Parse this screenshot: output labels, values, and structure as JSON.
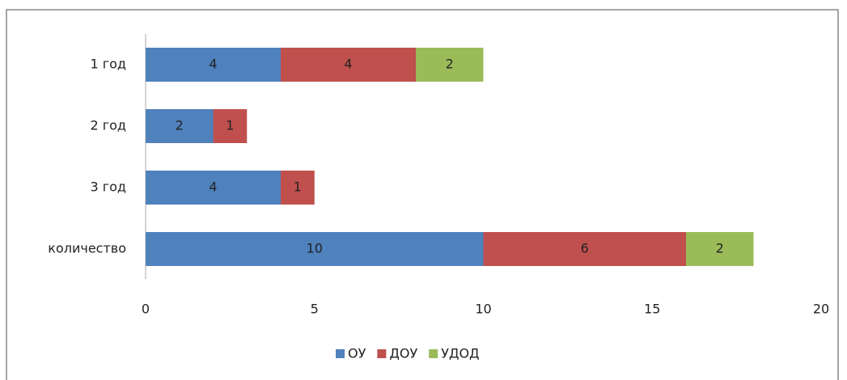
{
  "chart_data": {
    "type": "bar",
    "orientation": "horizontal",
    "stacked": true,
    "categories": [
      "1 год",
      "2 год",
      "3 год",
      "количество"
    ],
    "series": [
      {
        "name": "ОУ",
        "color": "#4f81bd",
        "values": [
          4,
          2,
          4,
          10
        ]
      },
      {
        "name": "ДОУ",
        "color": "#c0504d",
        "values": [
          4,
          1,
          1,
          6
        ]
      },
      {
        "name": "УДОД",
        "color": "#9bbb59",
        "values": [
          2,
          null,
          null,
          2
        ]
      }
    ],
    "xlim": [
      0,
      20
    ],
    "xticks": [
      0,
      5,
      10,
      15,
      20
    ],
    "grid": false,
    "legend": "bottom"
  }
}
